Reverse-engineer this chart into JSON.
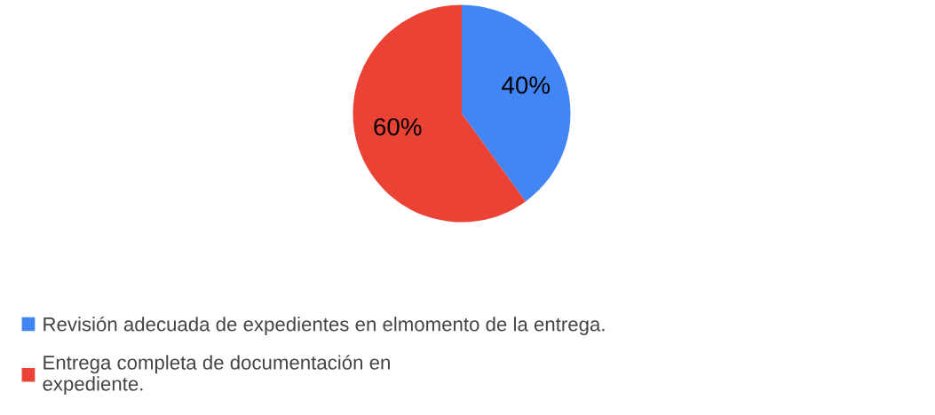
{
  "chart_data": {
    "type": "pie",
    "categories": [
      "Revisión adecuada de expedientes en elmomento de la entrega.",
      "Entrega completa de documentación en\nexpediente."
    ],
    "values": [
      40,
      60
    ],
    "colors": [
      "#4285f4",
      "#ea4335"
    ],
    "value_labels": [
      "40%",
      "60%"
    ],
    "legend": "bottom left"
  }
}
